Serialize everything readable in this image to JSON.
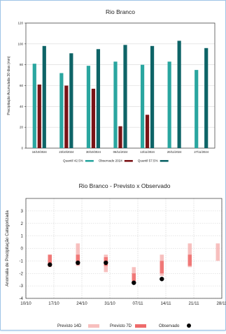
{
  "chart_data": [
    {
      "type": "bar",
      "title": "Rio Branco",
      "ylabel": "Precipitação Acumulada 30 dias (mm)",
      "xlabel": "",
      "ylim": [
        0,
        120
      ],
      "yticks": [
        0,
        20,
        40,
        60,
        80,
        100,
        120
      ],
      "categories": [
        "16/10/2024",
        "23/10/2024",
        "30/10/2024",
        "06/11/2024",
        "13/11/2024",
        "20/11/2024",
        "27/11/2024"
      ],
      "series": [
        {
          "name": "Quantil 42.5%",
          "color": "#2aa6a0",
          "values": [
            81,
            72,
            79,
            83,
            80,
            83,
            75
          ]
        },
        {
          "name": "Observado 2024",
          "color": "#7a1316",
          "values": [
            61,
            60,
            57,
            21,
            32,
            null,
            null
          ]
        },
        {
          "name": "Quantil 57.5%",
          "color": "#0e6467",
          "values": [
            98,
            91,
            95,
            99,
            98,
            103,
            96
          ]
        }
      ],
      "legend_position": "bottom",
      "grid": true
    },
    {
      "type": "scatter",
      "title": "Rio Branco - Previsto x Observado",
      "ylabel": "Anomalia de Precipitação Categorizada",
      "xlabel": "",
      "ylim": [
        -4,
        4
      ],
      "yticks": [
        -4,
        -3,
        -2,
        -1,
        0,
        1,
        2,
        3
      ],
      "xticks": [
        "10/10",
        "17/10",
        "24/10",
        "31/10",
        "07/11",
        "14/11",
        "21/11",
        "28/11"
      ],
      "xlim": [
        "10/10",
        "28/11"
      ],
      "grid": true,
      "legend_position": "bottom",
      "series": [
        {
          "name": "Previsto 14D",
          "color": "#f4a9a8",
          "ranges": [
            {
              "x": "16/10",
              "low": -1.5,
              "high": -0.5
            },
            {
              "x": "23/10",
              "low": -1.4,
              "high": 0.4
            },
            {
              "x": "30/10",
              "low": -1.9,
              "high": -0.5
            },
            {
              "x": "06/11",
              "low": -2.8,
              "high": -1.5
            },
            {
              "x": "13/11",
              "low": -2.2,
              "high": -0.5
            },
            {
              "x": "20/11",
              "low": -1.5,
              "high": 0.4
            },
            {
              "x": "27/11",
              "low": -1.0,
              "high": 0.4
            }
          ]
        },
        {
          "name": "Previsto 7D",
          "color": "#ee6b6b",
          "ranges": [
            {
              "x": "16/10",
              "low": -1.3,
              "high": -0.5
            },
            {
              "x": "23/10",
              "low": -1.3,
              "high": -0.5
            },
            {
              "x": "30/10",
              "low": -1.4,
              "high": -0.7
            },
            {
              "x": "06/11",
              "low": -2.6,
              "high": -2.0
            },
            {
              "x": "13/11",
              "low": -2.0,
              "high": -1.0
            },
            {
              "x": "20/11",
              "low": -1.4,
              "high": -0.5
            }
          ]
        },
        {
          "name": "Observado",
          "color": "#000000",
          "points": [
            {
              "x": "16/10",
              "y": -1.3
            },
            {
              "x": "23/10",
              "y": -1.15
            },
            {
              "x": "30/10",
              "y": -1.15
            },
            {
              "x": "06/11",
              "y": -2.75
            },
            {
              "x": "13/11",
              "y": -2.45
            }
          ]
        }
      ]
    }
  ]
}
